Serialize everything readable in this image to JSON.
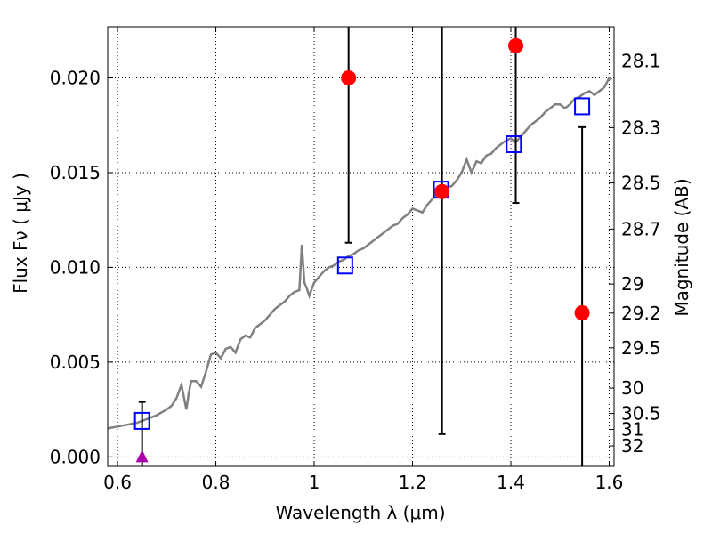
{
  "chart_data": {
    "type": "scatter",
    "xlabel": "Wavelength  λ (μm)",
    "ylabel": "Flux  Fν  ( μJy )",
    "ylabel_right": "Magnitude (AB)",
    "xlim": [
      0.58,
      1.61
    ],
    "ylim": [
      -0.0005,
      0.0227
    ],
    "grid": true,
    "x_ticks": [
      {
        "value": 0.6,
        "label": "0.6"
      },
      {
        "value": 0.8,
        "label": "0.8"
      },
      {
        "value": 1.0,
        "label": "1"
      },
      {
        "value": 1.2,
        "label": "1.2"
      },
      {
        "value": 1.4,
        "label": "1.4"
      },
      {
        "value": 1.6,
        "label": "1.6"
      }
    ],
    "y_ticks": [
      {
        "value": 0.0,
        "label": "0.000"
      },
      {
        "value": 0.005,
        "label": "0.005"
      },
      {
        "value": 0.01,
        "label": "0.010"
      },
      {
        "value": 0.015,
        "label": "0.015"
      },
      {
        "value": 0.02,
        "label": "0.020"
      }
    ],
    "magnitude_ticks": [
      {
        "value": 28.1,
        "label": "28.1"
      },
      {
        "value": 28.3,
        "label": "28.3"
      },
      {
        "value": 28.5,
        "label": "28.5"
      },
      {
        "value": 28.7,
        "label": "28.7"
      },
      {
        "value": 29.0,
        "label": "29"
      },
      {
        "value": 29.2,
        "label": "29.2"
      },
      {
        "value": 29.5,
        "label": "29.5"
      },
      {
        "value": 30.0,
        "label": "30"
      },
      {
        "value": 30.5,
        "label": "30.5"
      },
      {
        "value": 31.0,
        "label": "31"
      },
      {
        "value": 32.0,
        "label": "32"
      }
    ],
    "series": [
      {
        "kind": "model_spectrum",
        "color": "#808080",
        "x": [
          0.58,
          0.6,
          0.62,
          0.64,
          0.65,
          0.66,
          0.68,
          0.7,
          0.71,
          0.72,
          0.73,
          0.74,
          0.745,
          0.75,
          0.76,
          0.77,
          0.78,
          0.79,
          0.8,
          0.81,
          0.82,
          0.83,
          0.84,
          0.85,
          0.86,
          0.87,
          0.88,
          0.89,
          0.9,
          0.91,
          0.92,
          0.93,
          0.94,
          0.95,
          0.96,
          0.97,
          0.975,
          0.98,
          0.985,
          0.99,
          1.0,
          1.01,
          1.02,
          1.03,
          1.04,
          1.05,
          1.06,
          1.07,
          1.08,
          1.09,
          1.1,
          1.11,
          1.12,
          1.13,
          1.14,
          1.15,
          1.16,
          1.17,
          1.18,
          1.19,
          1.2,
          1.21,
          1.22,
          1.23,
          1.24,
          1.25,
          1.26,
          1.27,
          1.28,
          1.29,
          1.3,
          1.31,
          1.32,
          1.33,
          1.34,
          1.35,
          1.36,
          1.37,
          1.38,
          1.39,
          1.4,
          1.41,
          1.42,
          1.43,
          1.44,
          1.45,
          1.46,
          1.47,
          1.48,
          1.49,
          1.5,
          1.51,
          1.52,
          1.53,
          1.54,
          1.55,
          1.56,
          1.57,
          1.58,
          1.59,
          1.6,
          1.605
        ],
        "y": [
          0.0015,
          0.0016,
          0.0017,
          0.0018,
          0.0019,
          0.002,
          0.0022,
          0.0025,
          0.0027,
          0.0031,
          0.0038,
          0.0025,
          0.0034,
          0.004,
          0.004,
          0.0037,
          0.0045,
          0.0054,
          0.0055,
          0.0052,
          0.0057,
          0.0058,
          0.0055,
          0.0062,
          0.0064,
          0.0063,
          0.0068,
          0.007,
          0.0072,
          0.0075,
          0.0078,
          0.008,
          0.0082,
          0.0085,
          0.0087,
          0.0088,
          0.0112,
          0.0092,
          0.0089,
          0.0085,
          0.0092,
          0.0095,
          0.0098,
          0.01,
          0.0101,
          0.0103,
          0.0104,
          0.0106,
          0.0107,
          0.0109,
          0.011,
          0.0112,
          0.0114,
          0.0116,
          0.0118,
          0.012,
          0.0122,
          0.0123,
          0.0126,
          0.0128,
          0.0131,
          0.013,
          0.0129,
          0.0133,
          0.0136,
          0.0139,
          0.014,
          0.0142,
          0.0143,
          0.0146,
          0.015,
          0.0157,
          0.015,
          0.0156,
          0.0155,
          0.0159,
          0.016,
          0.0163,
          0.0165,
          0.0167,
          0.0168,
          0.0166,
          0.0169,
          0.0172,
          0.0175,
          0.0177,
          0.0179,
          0.0182,
          0.0184,
          0.0186,
          0.0186,
          0.0184,
          0.0186,
          0.0189,
          0.019,
          0.0192,
          0.0193,
          0.0191,
          0.0193,
          0.0195,
          0.02,
          0.0199
        ]
      },
      {
        "kind": "model_photometry",
        "marker": "open-square",
        "color": "#0000ff",
        "x": [
          0.65,
          1.063,
          1.258,
          1.406,
          1.545
        ],
        "y": [
          0.0019,
          0.0101,
          0.0141,
          0.0165,
          0.0185
        ]
      },
      {
        "kind": "observed_photometry",
        "marker": "filled-circle",
        "color": "#ff0000",
        "x": [
          1.07,
          1.26,
          1.41,
          1.545
        ],
        "y": [
          0.02,
          0.014,
          0.0217,
          0.0076
        ],
        "errors": [
          [
            0.0113,
            0.0235
          ],
          [
            0.0012,
            0.0235
          ],
          [
            0.0134,
            0.0235
          ],
          [
            -0.0005,
            0.0174
          ]
        ]
      },
      {
        "kind": "upper_limit",
        "marker": "filled-triangle",
        "color": "#aa00aa",
        "x": [
          0.65
        ],
        "y": [
          0.0
        ],
        "errors": [
          [
            -0.0005,
            0.0029
          ]
        ]
      }
    ]
  }
}
